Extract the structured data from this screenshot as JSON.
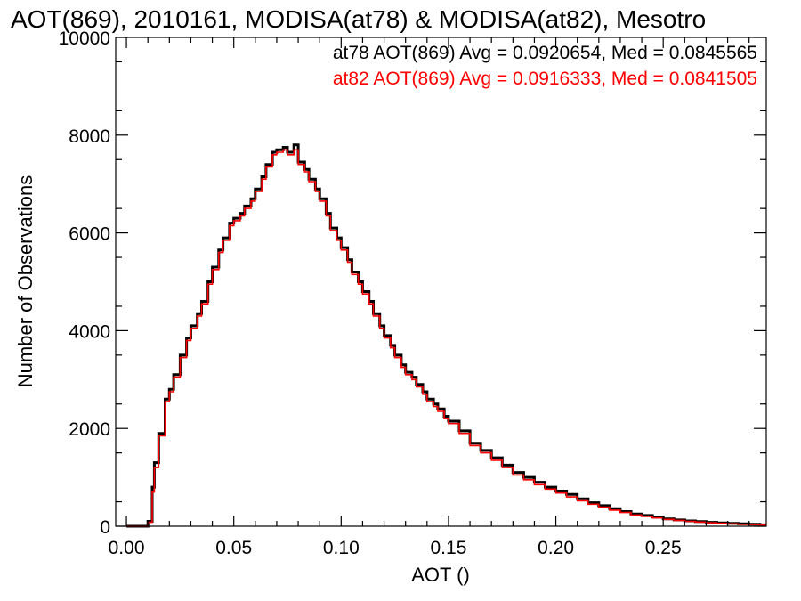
{
  "chart_data": {
    "type": "line",
    "title": "AOT(869), 2010161, MODISA(at78) & MODISA(at82), Mesotro",
    "xlabel": "AOT ()",
    "ylabel": "Number of Observations",
    "xlim": [
      -0.005,
      0.298
    ],
    "ylim": [
      0,
      10000
    ],
    "x_ticks": [
      0.0,
      0.05,
      0.1,
      0.15,
      0.2,
      0.25
    ],
    "x_tick_labels": [
      "0.00",
      "0.05",
      "0.10",
      "0.15",
      "0.20",
      "0.25"
    ],
    "y_ticks": [
      0,
      2000,
      4000,
      6000,
      8000,
      10000
    ],
    "y_tick_labels": [
      "0",
      "2000",
      "4000",
      "6000",
      "8000",
      "10000"
    ],
    "grid": false,
    "line_style": "step",
    "annotations": [
      {
        "text": "at78 AOT(869) Avg = 0.0920654, Med = 0.0845565",
        "color": "#000000"
      },
      {
        "text": "at82 AOT(869) Avg = 0.0916333, Med = 0.0841505",
        "color": "#ff0000"
      }
    ],
    "x": [
      0.0,
      0.005,
      0.008,
      0.01,
      0.012,
      0.013,
      0.015,
      0.018,
      0.02,
      0.022,
      0.025,
      0.028,
      0.03,
      0.033,
      0.035,
      0.038,
      0.04,
      0.043,
      0.045,
      0.048,
      0.05,
      0.053,
      0.055,
      0.058,
      0.06,
      0.063,
      0.065,
      0.068,
      0.07,
      0.073,
      0.075,
      0.078,
      0.08,
      0.083,
      0.085,
      0.088,
      0.09,
      0.093,
      0.095,
      0.098,
      0.1,
      0.103,
      0.105,
      0.108,
      0.11,
      0.113,
      0.115,
      0.118,
      0.12,
      0.123,
      0.125,
      0.128,
      0.13,
      0.133,
      0.135,
      0.138,
      0.14,
      0.143,
      0.145,
      0.148,
      0.15,
      0.155,
      0.16,
      0.165,
      0.17,
      0.175,
      0.18,
      0.185,
      0.19,
      0.195,
      0.2,
      0.205,
      0.21,
      0.215,
      0.22,
      0.225,
      0.23,
      0.235,
      0.24,
      0.245,
      0.25,
      0.255,
      0.26,
      0.265,
      0.27,
      0.275,
      0.28,
      0.285,
      0.29,
      0.295
    ],
    "series": [
      {
        "color": "#000000",
        "values": [
          0,
          0,
          0,
          100,
          800,
          1300,
          1900,
          2600,
          2800,
          3100,
          3500,
          3850,
          4100,
          4350,
          4600,
          5000,
          5300,
          5650,
          5900,
          6200,
          6300,
          6400,
          6550,
          6700,
          6900,
          7150,
          7400,
          7650,
          7700,
          7750,
          7650,
          7800,
          7450,
          7300,
          7100,
          6900,
          6700,
          6400,
          6100,
          5900,
          5700,
          5450,
          5200,
          5000,
          4800,
          4600,
          4350,
          4100,
          3900,
          3700,
          3500,
          3300,
          3150,
          3050,
          2900,
          2750,
          2600,
          2500,
          2400,
          2250,
          2150,
          1950,
          1700,
          1550,
          1400,
          1250,
          1100,
          1000,
          900,
          800,
          720,
          650,
          560,
          480,
          420,
          360,
          300,
          250,
          220,
          190,
          150,
          130,
          110,
          95,
          80,
          70,
          60,
          50,
          40,
          30
        ]
      },
      {
        "color": "#ff0000",
        "values": [
          0,
          0,
          0,
          80,
          700,
          1200,
          1850,
          2550,
          2750,
          3050,
          3450,
          3800,
          4050,
          4300,
          4550,
          4950,
          5250,
          5600,
          5850,
          6150,
          6250,
          6350,
          6500,
          6650,
          6850,
          7100,
          7350,
          7600,
          7650,
          7700,
          7600,
          7700,
          7400,
          7250,
          7050,
          6850,
          6650,
          6350,
          6050,
          5850,
          5650,
          5400,
          5150,
          4950,
          4750,
          4550,
          4300,
          4050,
          3850,
          3650,
          3450,
          3250,
          3100,
          3000,
          2850,
          2700,
          2550,
          2450,
          2350,
          2200,
          2100,
          1900,
          1650,
          1500,
          1350,
          1200,
          1050,
          950,
          850,
          760,
          680,
          600,
          520,
          450,
          390,
          330,
          280,
          230,
          200,
          170,
          140,
          120,
          100,
          85,
          70,
          60,
          50,
          40,
          35,
          25
        ]
      }
    ]
  }
}
